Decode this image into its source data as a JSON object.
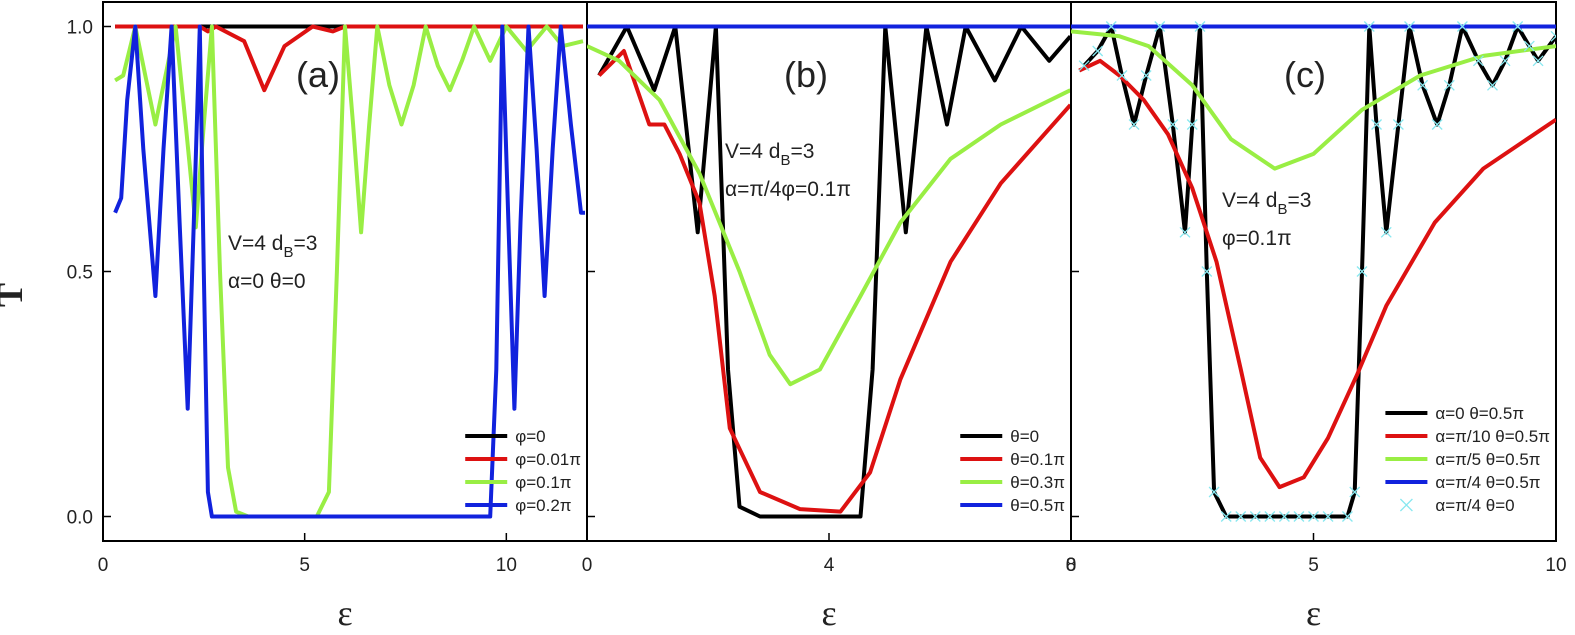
{
  "chart_data": [
    {
      "type": "line",
      "panel_label": "(a)",
      "ylabel": "T",
      "xlabel": "ε",
      "annotation": [
        [
          "V=4 d",
          "B",
          "=3"
        ],
        [
          "α=0 θ=0"
        ]
      ],
      "xlim": [
        0,
        12
      ],
      "xticks": [
        0,
        5,
        10
      ],
      "ylim": [
        -0.05,
        1.05
      ],
      "yticks": [
        {
          "value": 0,
          "label": "0.0"
        },
        {
          "value": 0.5,
          "label": "0.5"
        },
        {
          "value": 1,
          "label": "1.0"
        }
      ],
      "legend": "lower right",
      "series": [
        {
          "name": "φ=0",
          "color": "#000000",
          "x": [
            0.3,
            11.9
          ],
          "values": [
            1,
            1
          ]
        },
        {
          "name": "φ=0.01π",
          "color": "#dd1111",
          "x": [
            0.3,
            2.4,
            2.6,
            2.8,
            3.5,
            4.0,
            4.5,
            5.2,
            5.7,
            6.0,
            11.9
          ],
          "values": [
            1,
            1,
            0.99,
            1,
            0.97,
            0.87,
            0.96,
            1,
            0.99,
            1,
            1
          ]
        },
        {
          "name": "φ=0.1π",
          "color": "#99ee44",
          "x": [
            0.3,
            0.5,
            0.8,
            1.05,
            1.3,
            1.55,
            1.8,
            2.05,
            2.3,
            2.5,
            2.7,
            2.9,
            3.1,
            3.3,
            3.6,
            5.3,
            5.6,
            5.8,
            6.0,
            6.2,
            6.4,
            6.6,
            6.8,
            7.1,
            7.4,
            7.7,
            8.0,
            8.3,
            8.6,
            8.9,
            9.2,
            9.6,
            10.0,
            10.5,
            11.0,
            11.4,
            11.9
          ],
          "values": [
            0.89,
            0.9,
            1,
            0.9,
            0.8,
            0.9,
            1,
            0.8,
            0.59,
            0.8,
            1,
            0.5,
            0.1,
            0.01,
            0,
            0,
            0.05,
            0.5,
            1,
            0.8,
            0.58,
            0.8,
            1,
            0.88,
            0.8,
            0.88,
            1,
            0.92,
            0.87,
            0.93,
            1,
            0.93,
            1,
            0.95,
            1,
            0.96,
            0.97
          ]
        },
        {
          "name": "φ=0.2π",
          "color": "#1122dd",
          "x": [
            0.3,
            0.45,
            0.6,
            0.8,
            1.0,
            1.3,
            1.5,
            1.7,
            1.9,
            2.1,
            2.25,
            2.4,
            2.5,
            2.6,
            2.7,
            9.6,
            9.75,
            9.9,
            10.05,
            10.2,
            10.35,
            10.55,
            10.75,
            10.95,
            11.15,
            11.35,
            11.6,
            11.85,
            11.95
          ],
          "values": [
            0.62,
            0.65,
            0.85,
            1,
            0.75,
            0.45,
            0.75,
            1,
            0.6,
            0.22,
            0.6,
            1,
            0.5,
            0.05,
            0,
            0,
            0.3,
            1,
            0.6,
            0.22,
            0.6,
            1,
            0.75,
            0.45,
            0.75,
            1,
            0.8,
            0.62,
            0.62
          ]
        }
      ]
    },
    {
      "type": "line",
      "panel_label": "(b)",
      "xlabel": "ε",
      "annotation": [
        [
          "V=4 d",
          "B",
          "=3"
        ],
        [
          "α=π/4φ=0.1π"
        ]
      ],
      "xlim": [
        0,
        8
      ],
      "xticks": [
        0,
        4,
        8
      ],
      "ylim": [
        -0.05,
        1.05
      ],
      "yticks": [
        0,
        0.5,
        1
      ],
      "legend": "lower right",
      "series": [
        {
          "name": "θ=0",
          "color": "#000000",
          "x": [
            0.2,
            0.66,
            1.11,
            1.46,
            1.83,
            2.13,
            2.33,
            2.52,
            2.86,
            4.52,
            4.72,
            4.93,
            5.27,
            5.61,
            5.95,
            6.26,
            6.74,
            7.18,
            7.64,
            7.99
          ],
          "values": [
            0.9,
            1,
            0.87,
            1,
            0.58,
            1,
            0.3,
            0.02,
            0,
            0,
            0.3,
            1,
            0.58,
            1,
            0.8,
            1,
            0.89,
            1,
            0.93,
            0.98
          ]
        },
        {
          "name": "θ=0.1π",
          "color": "#dd1111",
          "x": [
            0.2,
            0.61,
            1.03,
            1.28,
            1.53,
            1.86,
            2.11,
            2.36,
            2.86,
            3.52,
            4.19,
            4.68,
            5.18,
            6.01,
            6.84,
            7.99
          ],
          "values": [
            0.9,
            0.95,
            0.8,
            0.8,
            0.74,
            0.64,
            0.45,
            0.18,
            0.05,
            0.015,
            0.01,
            0.09,
            0.28,
            0.52,
            0.68,
            0.84
          ]
        },
        {
          "name": "θ=0.3π",
          "color": "#99ee44",
          "x": [
            0,
            0.53,
            1.2,
            1.86,
            2.52,
            3.02,
            3.36,
            3.85,
            4.52,
            5.18,
            6.01,
            6.84,
            7.99
          ],
          "values": [
            0.96,
            0.93,
            0.85,
            0.7,
            0.5,
            0.33,
            0.27,
            0.3,
            0.45,
            0.6,
            0.73,
            0.8,
            0.87
          ]
        },
        {
          "name": "θ=0.5π",
          "color": "#1122dd",
          "x": [
            0,
            8
          ],
          "values": [
            1,
            1
          ]
        }
      ]
    },
    {
      "type": "line",
      "panel_label": "(c)",
      "xlabel": "ε",
      "annotation": [
        [
          "V=4 d",
          "B",
          "=3"
        ],
        [
          "φ=0.1π"
        ]
      ],
      "xlim": [
        0,
        10
      ],
      "xticks": [
        0,
        5,
        10
      ],
      "ylim": [
        -0.05,
        1.05
      ],
      "yticks": [
        0,
        0.5,
        1
      ],
      "legend": "lower right",
      "series": [
        {
          "name": "α=0 θ=0.5π",
          "color": "#000000",
          "x": [
            0.27,
            0.55,
            0.83,
            1.05,
            1.3,
            1.55,
            1.83,
            2.1,
            2.35,
            2.5,
            2.66,
            2.8,
            2.95,
            3.2,
            5.7,
            5.85,
            6.0,
            6.15,
            6.3,
            6.5,
            6.75,
            6.98,
            7.25,
            7.55,
            7.8,
            8.07,
            8.4,
            8.69,
            8.95,
            9.21,
            9.45,
            9.63,
            10
          ],
          "values": [
            0.92,
            0.95,
            1,
            0.9,
            0.8,
            0.9,
            1,
            0.8,
            0.58,
            0.8,
            1,
            0.5,
            0.05,
            0,
            0,
            0.05,
            0.5,
            1,
            0.8,
            0.58,
            0.8,
            1,
            0.88,
            0.8,
            0.88,
            1,
            0.93,
            0.88,
            0.93,
            1,
            0.96,
            0.93,
            0.98
          ]
        },
        {
          "name": "α=π/10 θ=0.5π",
          "color": "#dd1111",
          "x": [
            0.17,
            0.6,
            1.0,
            1.5,
            2.0,
            2.5,
            3.0,
            3.5,
            3.9,
            4.3,
            4.8,
            5.3,
            5.9,
            6.5,
            7.5,
            8.5,
            10
          ],
          "values": [
            0.91,
            0.93,
            0.9,
            0.85,
            0.78,
            0.67,
            0.52,
            0.3,
            0.12,
            0.06,
            0.08,
            0.16,
            0.29,
            0.43,
            0.6,
            0.71,
            0.81
          ]
        },
        {
          "name": "α=π/5 θ=0.5π",
          "color": "#99ee44",
          "x": [
            0,
            1.0,
            1.6,
            2.5,
            3.3,
            4.2,
            5.0,
            6.0,
            7.2,
            8.5,
            10
          ],
          "values": [
            0.99,
            0.98,
            0.96,
            0.88,
            0.77,
            0.71,
            0.74,
            0.83,
            0.9,
            0.94,
            0.96
          ]
        },
        {
          "name": "α=π/4 θ=0.5π",
          "color": "#1122dd",
          "x": [
            0,
            10
          ],
          "values": [
            1,
            1
          ]
        },
        {
          "name": "α=π/4 θ=0",
          "color": "#88e8f0",
          "marker": "x",
          "x": [
            0.27,
            0.55,
            0.83,
            1.05,
            1.3,
            1.55,
            1.83,
            2.1,
            2.35,
            2.5,
            2.66,
            2.8,
            2.95,
            3.2,
            3.5,
            3.8,
            4.1,
            4.4,
            4.7,
            5.0,
            5.3,
            5.7,
            5.85,
            6.0,
            6.15,
            6.3,
            6.5,
            6.75,
            6.98,
            7.25,
            7.55,
            7.8,
            8.07,
            8.4,
            8.69,
            8.95,
            9.21,
            9.45,
            9.63,
            10
          ],
          "values": [
            0.92,
            0.95,
            1,
            0.9,
            0.8,
            0.9,
            1,
            0.8,
            0.58,
            0.8,
            1,
            0.5,
            0.05,
            0,
            0,
            0,
            0,
            0,
            0,
            0,
            0,
            0,
            0.05,
            0.5,
            1,
            0.8,
            0.58,
            0.8,
            1,
            0.88,
            0.8,
            0.88,
            1,
            0.93,
            0.88,
            0.93,
            1,
            0.96,
            0.93,
            0.98
          ]
        }
      ]
    }
  ]
}
